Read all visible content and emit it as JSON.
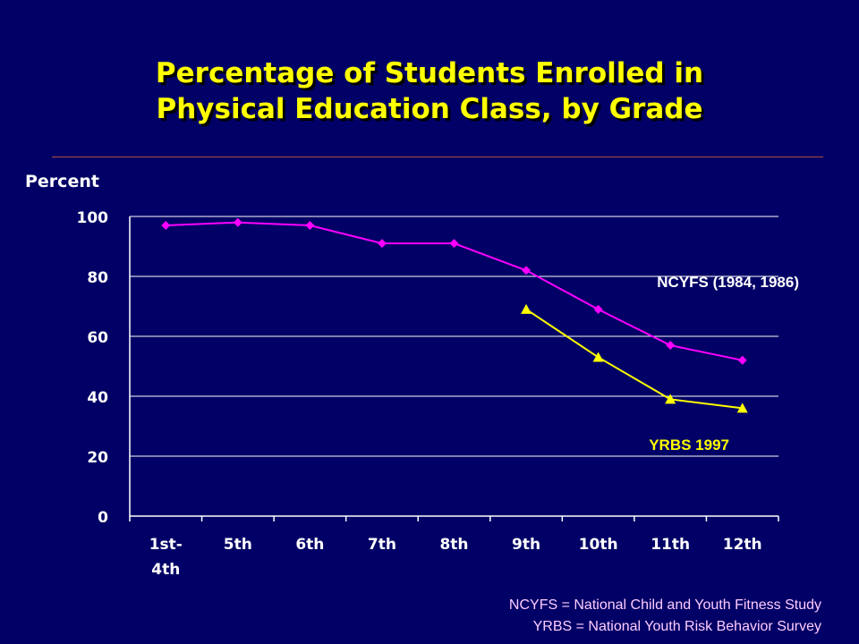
{
  "title_line1": "Percentage of Students Enrolled in",
  "title_line2": "Physical Education Class, by Grade",
  "colors": {
    "background": "#000066",
    "title": "#ffff00",
    "ncyfs": "#ff00ff",
    "yrbs": "#ffff00",
    "axis": "#ffffff",
    "footnote": "#ffccff"
  },
  "chart_data": {
    "type": "line",
    "ylabel": "Percent",
    "xlabel": "",
    "ylim": [
      0,
      100
    ],
    "yticks": [
      "0",
      "20",
      "40",
      "60",
      "80",
      "100"
    ],
    "ytick_values": [
      0,
      20,
      40,
      60,
      80,
      100
    ],
    "grid": "horizontal",
    "categories": [
      [
        "1st-",
        "4th"
      ],
      [
        "5th"
      ],
      [
        "6th"
      ],
      [
        "7th"
      ],
      [
        "8th"
      ],
      [
        "9th"
      ],
      [
        "10th"
      ],
      [
        "11th"
      ],
      [
        "12th"
      ]
    ],
    "series": [
      {
        "name": "NCYFS (1984, 1986)",
        "marker": "diamond",
        "values": [
          97,
          98,
          97,
          91,
          91,
          82,
          69,
          57,
          52
        ]
      },
      {
        "name": "YRBS 1997",
        "marker": "triangle",
        "values": [
          null,
          null,
          null,
          null,
          null,
          69,
          53,
          39,
          36
        ]
      }
    ]
  },
  "footnotes": {
    "ncyfs": "NCYFS = National Child and Youth Fitness Study",
    "yrbs": "YRBS = National Youth Risk Behavior Survey"
  }
}
